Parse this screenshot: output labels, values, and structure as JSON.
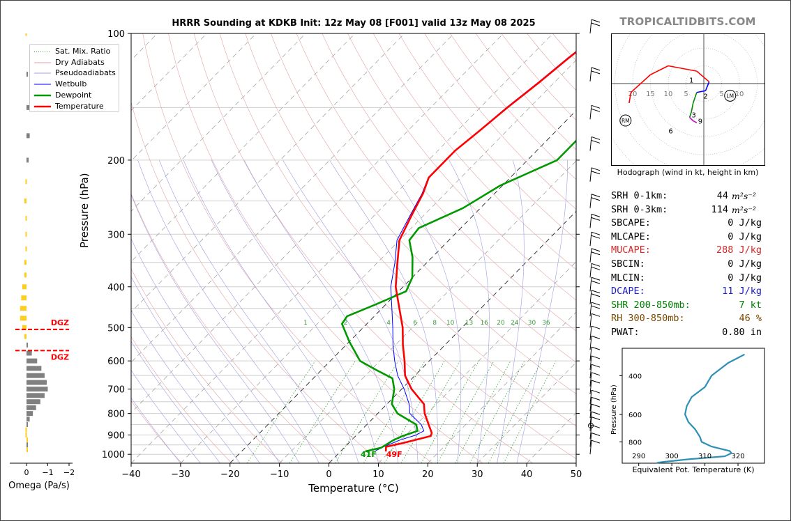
{
  "title": "HRRR Sounding at KDKB Init: 12z May 08 [F001] valid 13z May 08 2025",
  "brand": "TROPICALTIDBITS.COM",
  "skewt": {
    "xlabel": "Temperature (°C)",
    "ylabel": "Pressure (hPa)",
    "x_ticks": [
      -40,
      -30,
      -20,
      -10,
      0,
      10,
      20,
      30,
      40,
      50
    ],
    "y_ticks": [
      100,
      200,
      300,
      400,
      500,
      600,
      700,
      800,
      900,
      1000
    ],
    "xlim": [
      -40,
      50
    ],
    "ylim": [
      1050,
      100
    ],
    "mixing_ratio_labels": [
      "1",
      "2",
      "4",
      "6",
      "8",
      "10",
      "13",
      "16",
      "20",
      "24",
      "30",
      "36"
    ],
    "surface_temp_label": "49F",
    "surface_dewpoint_label": "41F",
    "colors": {
      "temperature": "#ff0000",
      "dewpoint": "#009900",
      "wetbulb": "#0000ff",
      "mixing_ratio": "#2e9e2e"
    }
  },
  "legend": {
    "items": [
      {
        "label": "Sat. Mix. Ratio",
        "color": "#2e9e2e",
        "style": "dotted"
      },
      {
        "label": "Dry Adiabats",
        "color": "#e0a0a0",
        "style": "solid"
      },
      {
        "label": "Pseudoadiabats",
        "color": "#a0a0e0",
        "style": "solid"
      },
      {
        "label": "Wetbulb",
        "color": "#0000ff",
        "style": "solid"
      },
      {
        "label": "Dewpoint",
        "color": "#009900",
        "style": "thick"
      },
      {
        "label": "Temperature",
        "color": "#ff0000",
        "style": "thick"
      }
    ]
  },
  "omega": {
    "xlabel": "Omega (Pa/s)",
    "x_ticks": [
      "0",
      "−1",
      "−2"
    ],
    "dgz_label": "DGZ"
  },
  "hodograph": {
    "caption": "Hodograph (wind in kt, height in km)",
    "ring_labels": [
      "20",
      "15",
      "10",
      "5",
      "5",
      "10"
    ],
    "height_labels": [
      "1",
      "2",
      "3",
      "9",
      "6"
    ],
    "markers": [
      "LM",
      "RM"
    ]
  },
  "params": [
    {
      "label": "SRH 0-1km:",
      "value": "44",
      "unit": "m²s⁻²",
      "color": "#000000"
    },
    {
      "label": "SRH 0-3km:",
      "value": "114",
      "unit": "m²s⁻²",
      "color": "#000000"
    },
    {
      "label": "SBCAPE:",
      "value": "0 J/kg",
      "unit": "",
      "color": "#000000"
    },
    {
      "label": "MLCAPE:",
      "value": "0 J/kg",
      "unit": "",
      "color": "#000000"
    },
    {
      "label": "MUCAPE:",
      "value": "288 J/kg",
      "unit": "",
      "color": "#d62728"
    },
    {
      "label": "SBCIN:",
      "value": "0 J/kg",
      "unit": "",
      "color": "#000000"
    },
    {
      "label": "MLCIN:",
      "value": "0 J/kg",
      "unit": "",
      "color": "#000000"
    },
    {
      "label": "DCAPE:",
      "value": "11 J/kg",
      "unit": "",
      "color": "#2020cc"
    },
    {
      "label": "SHR 200-850mb:",
      "value": "7 kt",
      "unit": "",
      "color": "#008000"
    },
    {
      "label": "RH 300-850mb:",
      "value": "46 %",
      "unit": "",
      "color": "#7a4a00"
    },
    {
      "label": "PWAT:",
      "value": "0.80 in",
      "unit": "",
      "color": "#000000"
    }
  ],
  "theta_e": {
    "xlabel": "Equivalent Pot. Temperature (K)",
    "ylabel": "Pressure (hPa)",
    "x_ticks": [
      "290",
      "300",
      "310",
      "320"
    ],
    "y_ticks": [
      "400",
      "600",
      "800"
    ]
  },
  "chart_data": [
    {
      "type": "line",
      "title": "HRRR Sounding at KDKB Init: 12z May 08 [F001] valid 13z May 08 2025",
      "xlabel": "Temperature (°C)",
      "ylabel": "Pressure (hPa)",
      "xlim": [
        -40,
        50
      ],
      "ylim": [
        1050,
        100
      ],
      "y_scale": "log",
      "legend": "top-left",
      "series": [
        {
          "name": "Temperature",
          "points": [
            [
              985,
              9.2
            ],
            [
              960,
              8.3
            ],
            [
              940,
              11.0
            ],
            [
              905,
              15.2
            ],
            [
              890,
              14.8
            ],
            [
              850,
              12.5
            ],
            [
              800,
              9.5
            ],
            [
              760,
              7.5
            ],
            [
              700,
              2.0
            ],
            [
              650,
              -2.0
            ],
            [
              600,
              -5.0
            ],
            [
              550,
              -8.5
            ],
            [
              500,
              -12.0
            ],
            [
              450,
              -16.5
            ],
            [
              400,
              -21.5
            ],
            [
              350,
              -26.0
            ],
            [
              310,
              -30.0
            ],
            [
              270,
              -32.5
            ],
            [
              240,
              -34.5
            ],
            [
              220,
              -36.5
            ],
            [
              190,
              -36.5
            ],
            [
              170,
              -35.5
            ],
            [
              150,
              -34.5
            ],
            [
              130,
              -33.0
            ],
            [
              115,
              -32.0
            ],
            [
              100,
              -30.5
            ]
          ]
        },
        {
          "name": "Dewpoint",
          "points": [
            [
              985,
              5.0
            ],
            [
              965,
              7.5
            ],
            [
              925,
              8.5
            ],
            [
              905,
              9.5
            ],
            [
              880,
              11.5
            ],
            [
              850,
              10.0
            ],
            [
              800,
              4.0
            ],
            [
              760,
              1.0
            ],
            [
              700,
              -1.5
            ],
            [
              660,
              -4.0
            ],
            [
              630,
              -9.0
            ],
            [
              600,
              -14.0
            ],
            [
              540,
              -20.0
            ],
            [
              490,
              -25.0
            ],
            [
              470,
              -25.5
            ],
            [
              440,
              -22.0
            ],
            [
              410,
              -18.5
            ],
            [
              380,
              -20.0
            ],
            [
              340,
              -24.0
            ],
            [
              310,
              -28.0
            ],
            [
              290,
              -28.5
            ],
            [
              260,
              -23.5
            ],
            [
              230,
              -20.5
            ],
            [
              200,
              -14.0
            ],
            [
              165,
              -14.0
            ],
            [
              145,
              -14.5
            ],
            [
              120,
              -10.0
            ],
            [
              100,
              -4.0
            ]
          ]
        },
        {
          "name": "Wetbulb",
          "points": [
            [
              980,
              7.0
            ],
            [
              960,
              7.8
            ],
            [
              925,
              9.8
            ],
            [
              900,
              12.0
            ],
            [
              880,
              12.8
            ],
            [
              850,
              11.0
            ],
            [
              800,
              6.5
            ],
            [
              760,
              4.5
            ],
            [
              700,
              0.5
            ],
            [
              650,
              -3.5
            ],
            [
              600,
              -7.0
            ],
            [
              550,
              -10.5
            ],
            [
              500,
              -14.0
            ],
            [
              450,
              -18.0
            ],
            [
              400,
              -22.5
            ],
            [
              350,
              -26.5
            ],
            [
              310,
              -30.5
            ],
            [
              270,
              -32.8
            ],
            [
              240,
              -34.7
            ],
            [
              220,
              -36.6
            ],
            [
              190,
              -36.6
            ],
            [
              170,
              -35.6
            ],
            [
              150,
              -34.7
            ],
            [
              130,
              -33.2
            ],
            [
              115,
              -32.2
            ],
            [
              100,
              -30.7
            ]
          ]
        }
      ]
    },
    {
      "type": "bar",
      "title": "",
      "xlabel": "Omega (Pa/s)",
      "xlim": [
        0.3,
        -2.2
      ],
      "series": [
        {
          "name": "",
          "points": [
            [
              100,
              0.05
            ],
            [
              125,
              -0.05
            ],
            [
              150,
              -0.3
            ],
            [
              175,
              -0.15
            ],
            [
              200,
              -0.1
            ],
            [
              225,
              0.05
            ],
            [
              250,
              0.1
            ],
            [
              275,
              0.05
            ],
            [
              300,
              0.05
            ],
            [
              325,
              0.05
            ],
            [
              350,
              0.1
            ],
            [
              375,
              0.1
            ],
            [
              400,
              0.2
            ],
            [
              425,
              0.25
            ],
            [
              450,
              0.3
            ],
            [
              475,
              0.3
            ],
            [
              500,
              0.2
            ],
            [
              525,
              0.1
            ],
            [
              550,
              -0.05
            ],
            [
              575,
              -0.25
            ],
            [
              600,
              -0.5
            ],
            [
              625,
              -0.7
            ],
            [
              650,
              -0.85
            ],
            [
              675,
              -0.95
            ],
            [
              700,
              -1.0
            ],
            [
              725,
              -0.85
            ],
            [
              750,
              -0.65
            ],
            [
              775,
              -0.45
            ],
            [
              800,
              -0.3
            ],
            [
              825,
              -0.15
            ],
            [
              850,
              -0.05
            ],
            [
              875,
              0.05
            ],
            [
              900,
              0.05
            ],
            [
              925,
              0.0
            ],
            [
              950,
              -0.05
            ],
            [
              975,
              0.0
            ]
          ]
        }
      ]
    },
    {
      "type": "line",
      "title": "",
      "xlabel": "",
      "ylabel": "",
      "series": [
        {
          "name": "",
          "points": [
            [
              -21,
              -5.5
            ],
            [
              -20.5,
              -2.5
            ],
            [
              -15,
              2.5
            ],
            [
              -10,
              5.0
            ],
            [
              -2,
              3.5
            ],
            [
              1.5,
              0.5
            ],
            [
              0.5,
              -2.0
            ],
            [
              -2,
              -2.5
            ],
            [
              -3,
              -5.5
            ],
            [
              -3.5,
              -8.0
            ],
            [
              -4,
              -9.5
            ],
            [
              -3,
              -10.5
            ],
            [
              -2,
              -11.0
            ]
          ]
        }
      ]
    },
    {
      "type": "line",
      "title": "",
      "xlabel": "Equivalent Pot. Temperature (K)",
      "ylabel": "Pressure (hPa)",
      "xlim": [
        285,
        328
      ],
      "ylim": [
        1000,
        300
      ],
      "series": [
        {
          "name": "",
          "points": [
            [
              995,
              295.5
            ],
            [
              985,
              298
            ],
            [
              960,
              305
            ],
            [
              930,
              316
            ],
            [
              900,
              318
            ],
            [
              880,
              317.5
            ],
            [
              840,
              312
            ],
            [
              800,
              309
            ],
            [
              760,
              308.5
            ],
            [
              700,
              307
            ],
            [
              650,
              305
            ],
            [
              600,
              304
            ],
            [
              550,
              304.5
            ],
            [
              500,
              306
            ],
            [
              450,
              310
            ],
            [
              400,
              312
            ],
            [
              350,
              317
            ],
            [
              320,
              322
            ]
          ]
        }
      ]
    }
  ]
}
